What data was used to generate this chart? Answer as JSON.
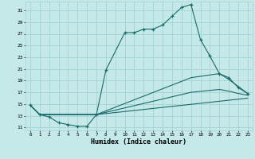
{
  "title": "",
  "xlabel": "Humidex (Indice chaleur)",
  "ylabel": "",
  "background_color": "#c5e8e8",
  "grid_color": "#a8d5d5",
  "line_color": "#1a6b6b",
  "xlim": [
    -0.5,
    23.5
  ],
  "ylim": [
    10.5,
    32.5
  ],
  "xticks": [
    0,
    1,
    2,
    3,
    4,
    5,
    6,
    7,
    8,
    9,
    10,
    11,
    12,
    13,
    14,
    15,
    16,
    17,
    18,
    19,
    20,
    21,
    22,
    23
  ],
  "yticks": [
    11,
    13,
    15,
    17,
    19,
    21,
    23,
    25,
    27,
    29,
    31
  ],
  "series": [
    {
      "x": [
        0,
        1,
        2,
        3,
        4,
        5,
        6,
        7,
        8,
        10,
        11,
        12,
        13,
        14,
        15,
        16,
        17,
        18,
        19,
        20,
        21,
        22,
        23
      ],
      "y": [
        14.8,
        13.2,
        12.8,
        11.8,
        11.5,
        11.2,
        11.2,
        13.2,
        20.8,
        27.2,
        27.2,
        27.8,
        27.8,
        28.5,
        30.0,
        31.5,
        32.0,
        26.0,
        23.2,
        20.2,
        19.5,
        17.8,
        16.8
      ],
      "marker": "+"
    },
    {
      "x": [
        0,
        1,
        7,
        17,
        20,
        21,
        22,
        23
      ],
      "y": [
        14.8,
        13.2,
        13.2,
        19.5,
        20.2,
        19.2,
        18.0,
        16.8
      ],
      "marker": null
    },
    {
      "x": [
        0,
        1,
        7,
        17,
        20,
        21,
        22,
        23
      ],
      "y": [
        14.8,
        13.2,
        13.2,
        17.0,
        17.5,
        17.2,
        16.8,
        16.5
      ],
      "marker": null
    },
    {
      "x": [
        0,
        1,
        7,
        23
      ],
      "y": [
        14.8,
        13.2,
        13.2,
        16.0
      ],
      "marker": null
    }
  ]
}
